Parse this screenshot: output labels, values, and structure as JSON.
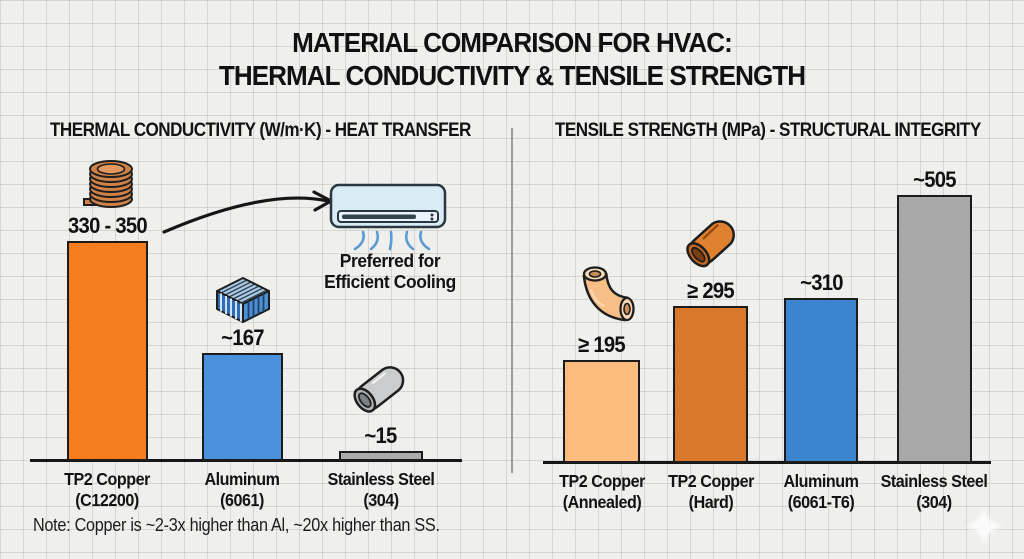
{
  "page": {
    "title_line1": "MATERIAL COMPARISON FOR HVAC:",
    "title_line2": "THERMAL CONDUCTIVITY & TENSILE STRENGTH",
    "note": "Note: Copper is ~2-3x higher than Al, ~20x higher than SS."
  },
  "annotation": {
    "line1": "Preferred for",
    "line2": "Efficient Cooling"
  },
  "icons": {
    "left_panel": [
      "copper-coil",
      "aluminum-heatsink",
      "stainless-steel-pipe",
      "air-conditioner",
      "curved-arrow"
    ],
    "right_panel": [
      "copper-elbow-annealed",
      "copper-tube-hard"
    ],
    "corner": "sparkle"
  },
  "colors": {
    "background": "#EFEFED",
    "grid_line": "#D9DAD8",
    "bar_border": "#1C1C1C",
    "axis": "#161616",
    "divider": "#9B9B9B",
    "air_stream": "#5B9BD5"
  },
  "chart_data": [
    {
      "type": "bar",
      "title": "THERMAL CONDUCTIVITY (W/m·K) - HEAT TRANSFER",
      "unit": "W/m·K",
      "categories": [
        "TP2 Copper (C12200)",
        "Aluminum (6061)",
        "Stainless Steel (304)"
      ],
      "category_lines": [
        [
          "TP2 Copper",
          "(C12200)"
        ],
        [
          "Aluminum",
          "(6061)"
        ],
        [
          "Stainless Steel",
          "(304)"
        ]
      ],
      "values": [
        340,
        167,
        15
      ],
      "value_labels": [
        "330 - 350",
        "~167",
        "~15"
      ],
      "bar_colors": [
        "#F57C1F",
        "#4A90DC",
        "#ABABAB"
      ],
      "ylim": [
        0,
        360
      ],
      "grid": "off",
      "legend": "none",
      "annotation": "Preferred for Efficient Cooling"
    },
    {
      "type": "bar",
      "title": "TENSILE STRENGTH (MPa) - STRUCTURAL INTEGRITY",
      "unit": "MPa",
      "categories": [
        "TP2 Copper (Annealed)",
        "TP2 Copper (Hard)",
        "Aluminum (6061-T6)",
        "Stainless Steel (304)"
      ],
      "category_lines": [
        [
          "TP2 Copper",
          "(Annealed)"
        ],
        [
          "TP2 Copper",
          "(Hard)"
        ],
        [
          "Aluminum",
          "(6061-T6)"
        ],
        [
          "Stainless Steel",
          "(304)"
        ]
      ],
      "values": [
        195,
        295,
        310,
        505
      ],
      "value_labels": [
        "≥ 195",
        "≥ 295",
        "~310",
        "~505"
      ],
      "bar_colors": [
        "#FBBC7E",
        "#D9772B",
        "#3B85D0",
        "#A8A8A8"
      ],
      "ylim": [
        0,
        540
      ],
      "grid": "off",
      "legend": "none"
    }
  ]
}
